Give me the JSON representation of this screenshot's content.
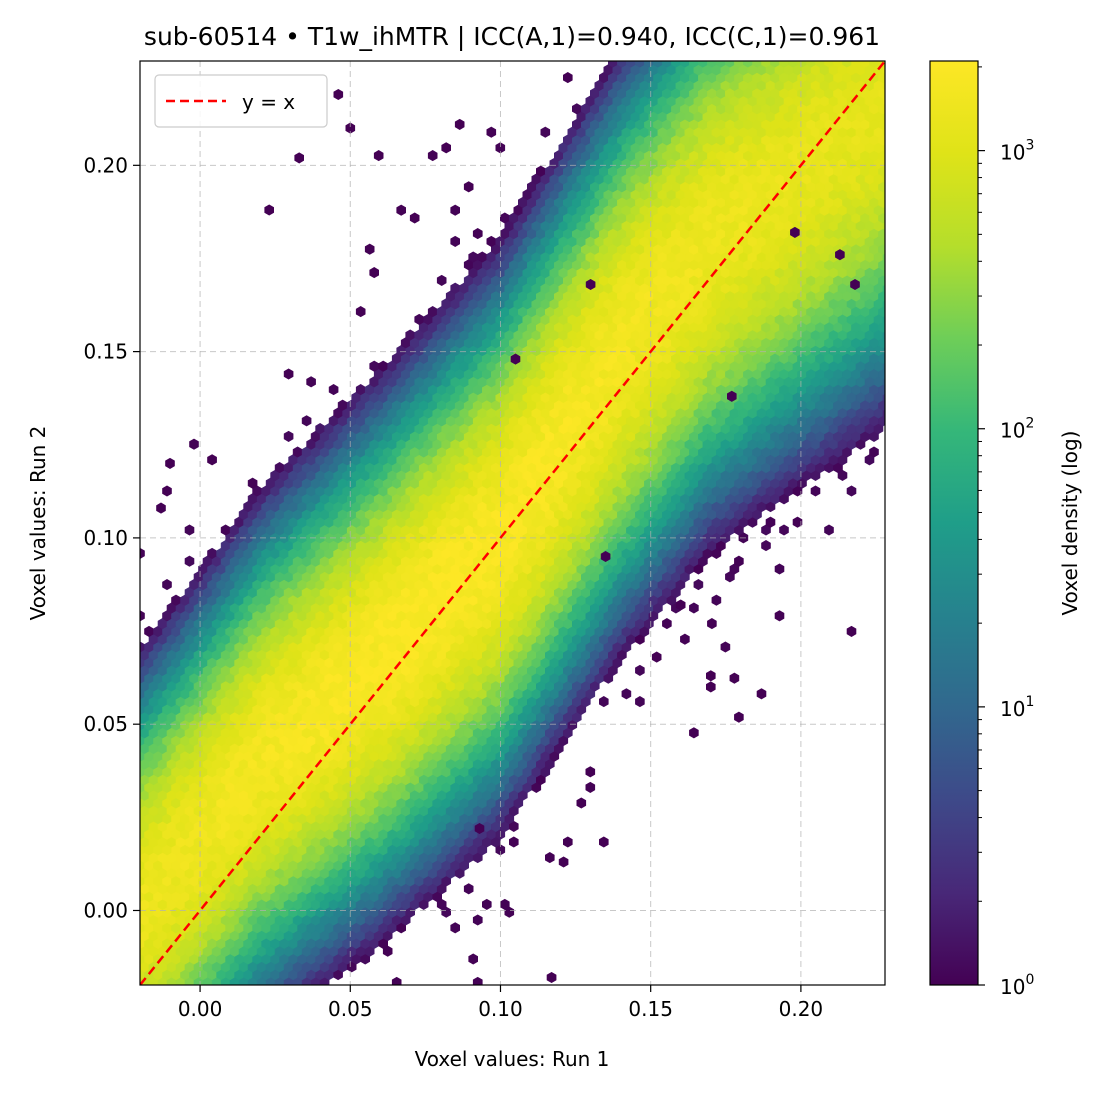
{
  "chart_data": {
    "type": "heatmap",
    "subtype": "hexbin",
    "title": "sub-60514 • T1w_ihMTR | ICC(A,1)=0.940, ICC(C,1)=0.961",
    "xlabel": "Voxel values: Run 1",
    "ylabel": "Voxel values: Run 2",
    "xlim": [
      -0.02,
      0.228
    ],
    "ylim": [
      -0.02,
      0.228
    ],
    "xticks": [
      0.0,
      0.05,
      0.1,
      0.15,
      0.2
    ],
    "yticks": [
      0.0,
      0.05,
      0.1,
      0.15,
      0.2
    ],
    "xtick_labels": [
      "0.00",
      "0.05",
      "0.10",
      "0.15",
      "0.20"
    ],
    "ytick_labels": [
      "0.00",
      "0.05",
      "0.10",
      "0.15",
      "0.20"
    ],
    "grid": true,
    "legend": {
      "position": "upper-left",
      "entries": [
        {
          "label": "y = x",
          "style": "dashed",
          "color": "#ff0000"
        }
      ]
    },
    "reference_line": {
      "label": "y = x",
      "slope": 1,
      "intercept": 0
    },
    "colorbar": {
      "label": "Voxel density (log)",
      "scale": "log",
      "range": [
        1,
        2100
      ],
      "colormap": "viridis",
      "ticks": [
        1,
        10,
        100,
        1000
      ],
      "tick_bases": [
        "10",
        "10",
        "10",
        "10"
      ],
      "tick_exponents": [
        "0",
        "1",
        "2",
        "3"
      ]
    },
    "density_ridge": {
      "description_points_x": [
        -0.01,
        0.02,
        0.06,
        0.1,
        0.14,
        0.17,
        0.21
      ],
      "description_points_y": [
        0.01,
        0.04,
        0.068,
        0.1,
        0.15,
        0.18,
        0.205
      ],
      "peak_density": 2000
    },
    "sparse_points": [
      [
        0.033,
        0.202
      ],
      [
        0.05,
        0.21
      ],
      [
        0.046,
        0.219
      ],
      [
        0.023,
        0.188
      ],
      [
        -0.01,
        0.12
      ],
      [
        -0.013,
        0.108
      ],
      [
        0.105,
        0.148
      ],
      [
        0.13,
        0.168
      ],
      [
        0.177,
        0.138
      ],
      [
        0.152,
        0.068
      ],
      [
        0.17,
        0.063
      ],
      [
        0.121,
        0.013
      ],
      [
        0.117,
        -0.018
      ],
      [
        0.198,
        0.182
      ],
      [
        0.213,
        0.176
      ],
      [
        0.218,
        0.168
      ],
      [
        0.17,
        0.06
      ],
      [
        0.135,
        0.095
      ],
      [
        0.16,
        0.082
      ],
      [
        0.093,
        0.022
      ]
    ]
  }
}
